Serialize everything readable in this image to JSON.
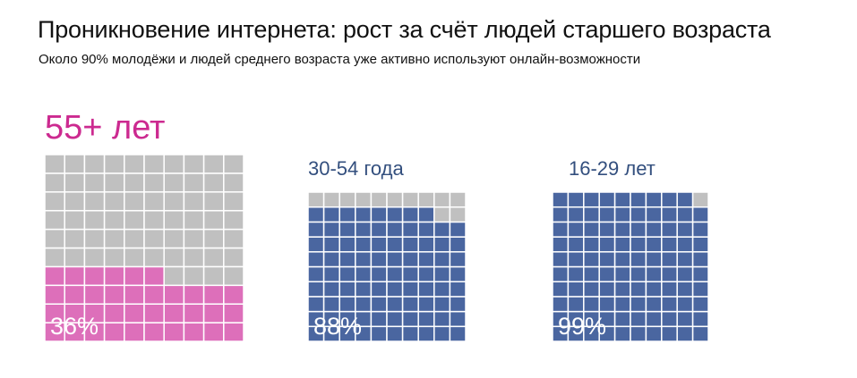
{
  "title": "Проникновение интернета: рост за счёт людей старшего возраста",
  "subtitle": "Около 90% молодёжи и людей среднего возраста уже активно используют онлайн-возможности",
  "chart_data": [
    {
      "type": "waffle",
      "group": "55+ лет",
      "value": 36,
      "value_label": "36%",
      "color": "#dd6fba",
      "empty_color": "#c0c0c0"
    },
    {
      "type": "waffle",
      "group": "30-54 года",
      "value": 88,
      "value_label": "88%",
      "color": "#4a66a0",
      "empty_color": "#c0c0c0"
    },
    {
      "type": "waffle",
      "group": "16-29 лет",
      "value": 99,
      "value_label": "99%",
      "color": "#4a66a0",
      "empty_color": "#c0c0c0"
    }
  ],
  "colors": {
    "accent_55": "#cc2a90",
    "group_label": "#334f7e"
  }
}
